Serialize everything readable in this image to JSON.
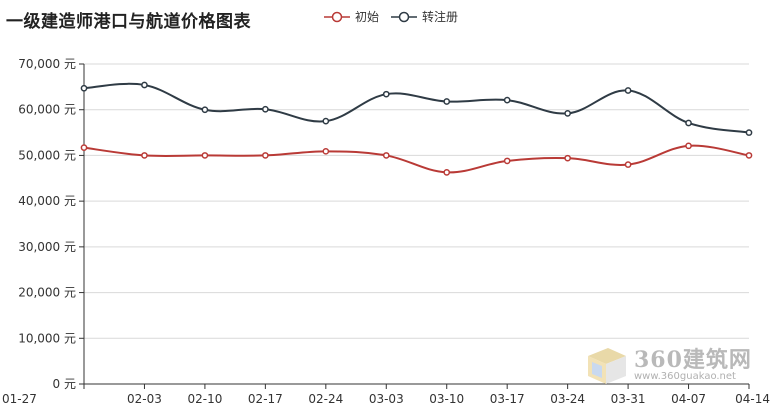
{
  "title": "一级建造师港口与航道价格图表",
  "colors": {
    "series0": "#b93a36",
    "series1": "#2f3b45",
    "grid": "#d9d9d9",
    "axis": "#333333"
  },
  "watermark": {
    "brand": "360建筑网",
    "url": "www.360guakao.net"
  },
  "chart_data": {
    "type": "line",
    "title": "一级建造师港口与航道价格图表",
    "categories": [
      "01-27",
      "02-03",
      "02-10",
      "02-17",
      "02-24",
      "03-03",
      "03-10",
      "03-17",
      "03-24",
      "03-31",
      "04-07",
      "04-14"
    ],
    "y_ticks": [
      "0 元",
      "10,000 元",
      "20,000 元",
      "30,000 元",
      "40,000 元",
      "50,000 元",
      "60,000 元",
      "70,000 元"
    ],
    "ylim": [
      0,
      70000
    ],
    "grid": true,
    "legend_position": "top",
    "series": [
      {
        "name": "初始",
        "values": [
          51700,
          50000,
          50000,
          50000,
          50900,
          50000,
          46300,
          48800,
          49400,
          48000,
          52100,
          50000
        ]
      },
      {
        "name": "转注册",
        "values": [
          64700,
          65400,
          60000,
          60100,
          57500,
          63400,
          61800,
          62100,
          59200,
          64200,
          57100,
          55000
        ]
      }
    ]
  }
}
